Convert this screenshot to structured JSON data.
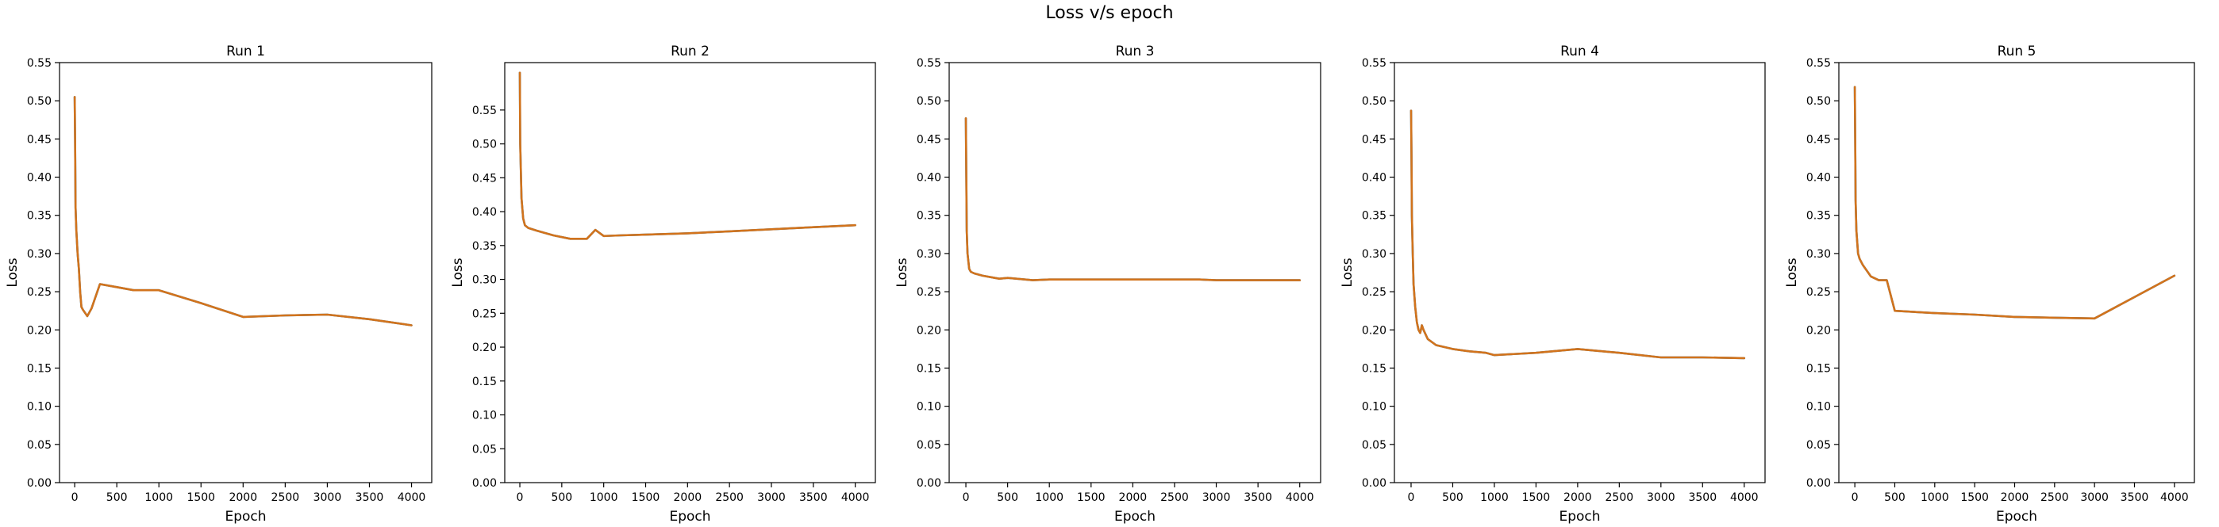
{
  "figure": {
    "title": "Loss v/s epoch"
  },
  "colors": {
    "series_top": "#ff7f0e",
    "series_bottom": "#1f77b4",
    "series_overlap": "#d2731c"
  },
  "chart_data": [
    {
      "type": "line",
      "title": "Run 1",
      "xlabel": "Epoch",
      "ylabel": "Loss",
      "xlim": [
        -180,
        4240
      ],
      "ylim": [
        0,
        0.55
      ],
      "xticks": [
        0,
        500,
        1000,
        1500,
        2000,
        2500,
        3000,
        3500,
        4000
      ],
      "yticks": [
        "0.00",
        "0.05",
        "0.10",
        "0.15",
        "0.20",
        "0.25",
        "0.30",
        "0.35",
        "0.40",
        "0.45",
        "0.50",
        "0.55"
      ],
      "series": [
        {
          "x": [
            0,
            5,
            10,
            20,
            35,
            50,
            65,
            80,
            100,
            150,
            200,
            300,
            500,
            700,
            1000,
            1500,
            2000,
            2500,
            3000,
            3500,
            4000
          ],
          "y": [
            0.505,
            0.45,
            0.36,
            0.33,
            0.3,
            0.28,
            0.25,
            0.23,
            0.226,
            0.218,
            0.228,
            0.26,
            0.256,
            0.252,
            0.252,
            0.235,
            0.217,
            0.219,
            0.22,
            0.214,
            0.206
          ]
        },
        {
          "x": [
            0,
            5,
            10,
            20,
            35,
            50,
            65,
            80,
            100,
            150,
            200,
            300,
            500,
            700,
            1000,
            1500,
            2000,
            2500,
            3000,
            3500,
            4000
          ],
          "y": [
            0.505,
            0.45,
            0.36,
            0.33,
            0.3,
            0.28,
            0.25,
            0.23,
            0.226,
            0.218,
            0.228,
            0.26,
            0.256,
            0.252,
            0.252,
            0.235,
            0.217,
            0.219,
            0.22,
            0.214,
            0.206
          ]
        }
      ]
    },
    {
      "type": "line",
      "title": "Run 2",
      "xlabel": "Epoch",
      "ylabel": "Loss",
      "xlim": [
        -180,
        4240
      ],
      "ylim": [
        0,
        0.62
      ],
      "xticks": [
        0,
        500,
        1000,
        1500,
        2000,
        2500,
        3000,
        3500,
        4000
      ],
      "yticks": [
        "0.00",
        "0.05",
        "0.10",
        "0.15",
        "0.20",
        "0.25",
        "0.30",
        "0.35",
        "0.40",
        "0.45",
        "0.50",
        "0.55"
      ],
      "series": [
        {
          "x": [
            0,
            5,
            10,
            20,
            40,
            60,
            100,
            200,
            400,
            600,
            800,
            900,
            1000,
            1200,
            1500,
            2000,
            2500,
            3000,
            3500,
            4000
          ],
          "y": [
            0.605,
            0.5,
            0.47,
            0.42,
            0.39,
            0.38,
            0.376,
            0.372,
            0.365,
            0.36,
            0.36,
            0.373,
            0.364,
            0.365,
            0.366,
            0.368,
            0.371,
            0.374,
            0.377,
            0.38
          ]
        },
        {
          "x": [
            0,
            5,
            10,
            20,
            40,
            60,
            100,
            200,
            400,
            600,
            800,
            900,
            1000,
            1200,
            1500,
            2000,
            2500,
            3000,
            3500,
            4000
          ],
          "y": [
            0.605,
            0.5,
            0.47,
            0.42,
            0.39,
            0.38,
            0.376,
            0.372,
            0.365,
            0.36,
            0.36,
            0.373,
            0.364,
            0.365,
            0.366,
            0.368,
            0.371,
            0.374,
            0.377,
            0.38
          ]
        }
      ]
    },
    {
      "type": "line",
      "title": "Run 3",
      "xlabel": "Epoch",
      "ylabel": "Loss",
      "xlim": [
        -200,
        4250
      ],
      "ylim": [
        0,
        0.55
      ],
      "xticks": [
        0,
        500,
        1000,
        1500,
        2000,
        2500,
        3000,
        3500,
        4000
      ],
      "yticks": [
        "0.00",
        "0.05",
        "0.10",
        "0.15",
        "0.20",
        "0.25",
        "0.30",
        "0.35",
        "0.40",
        "0.45",
        "0.50",
        "0.55"
      ],
      "series": [
        {
          "x": [
            0,
            5,
            10,
            20,
            40,
            60,
            100,
            200,
            400,
            500,
            800,
            1000,
            2000,
            2800,
            3000,
            4000
          ],
          "y": [
            0.477,
            0.4,
            0.33,
            0.3,
            0.28,
            0.276,
            0.274,
            0.271,
            0.267,
            0.268,
            0.265,
            0.266,
            0.266,
            0.266,
            0.265,
            0.265
          ]
        },
        {
          "x": [
            0,
            5,
            10,
            20,
            40,
            60,
            100,
            200,
            400,
            500,
            800,
            1000,
            2000,
            2800,
            3000,
            4000
          ],
          "y": [
            0.477,
            0.4,
            0.33,
            0.3,
            0.28,
            0.276,
            0.274,
            0.271,
            0.267,
            0.268,
            0.265,
            0.266,
            0.266,
            0.266,
            0.265,
            0.265
          ]
        }
      ]
    },
    {
      "type": "line",
      "title": "Run 4",
      "xlabel": "Epoch",
      "ylabel": "Loss",
      "xlim": [
        -200,
        4250
      ],
      "ylim": [
        0,
        0.55
      ],
      "xticks": [
        0,
        500,
        1000,
        1500,
        2000,
        2500,
        3000,
        3500,
        4000
      ],
      "yticks": [
        "0.00",
        "0.05",
        "0.10",
        "0.15",
        "0.20",
        "0.25",
        "0.30",
        "0.35",
        "0.40",
        "0.45",
        "0.50",
        "0.55"
      ],
      "series": [
        {
          "x": [
            0,
            5,
            10,
            20,
            30,
            50,
            70,
            90,
            110,
            130,
            150,
            200,
            300,
            500,
            700,
            900,
            1000,
            1500,
            2000,
            2500,
            3000,
            3500,
            4000
          ],
          "y": [
            0.487,
            0.43,
            0.35,
            0.3,
            0.26,
            0.23,
            0.21,
            0.2,
            0.196,
            0.206,
            0.2,
            0.188,
            0.18,
            0.175,
            0.172,
            0.17,
            0.167,
            0.17,
            0.175,
            0.17,
            0.164,
            0.164,
            0.163
          ]
        },
        {
          "x": [
            0,
            5,
            10,
            20,
            30,
            50,
            70,
            90,
            110,
            130,
            150,
            200,
            300,
            500,
            700,
            900,
            1000,
            1500,
            2000,
            2500,
            3000,
            3500,
            4000
          ],
          "y": [
            0.487,
            0.43,
            0.35,
            0.3,
            0.26,
            0.23,
            0.21,
            0.2,
            0.196,
            0.206,
            0.2,
            0.188,
            0.18,
            0.175,
            0.172,
            0.17,
            0.167,
            0.17,
            0.175,
            0.17,
            0.164,
            0.164,
            0.163
          ]
        }
      ]
    },
    {
      "type": "line",
      "title": "Run 5",
      "xlabel": "Epoch",
      "ylabel": "Loss",
      "xlim": [
        -200,
        4250
      ],
      "ylim": [
        0,
        0.55
      ],
      "xticks": [
        0,
        500,
        1000,
        1500,
        2000,
        2500,
        3000,
        3500,
        4000
      ],
      "yticks": [
        "0.00",
        "0.05",
        "0.10",
        "0.15",
        "0.20",
        "0.25",
        "0.30",
        "0.35",
        "0.40",
        "0.45",
        "0.50",
        "0.55"
      ],
      "series": [
        {
          "x": [
            0,
            5,
            10,
            20,
            40,
            60,
            100,
            200,
            300,
            400,
            500,
            1000,
            1500,
            2000,
            2500,
            3000,
            4000
          ],
          "y": [
            0.518,
            0.45,
            0.37,
            0.33,
            0.3,
            0.293,
            0.285,
            0.27,
            0.265,
            0.265,
            0.225,
            0.222,
            0.22,
            0.217,
            0.216,
            0.215,
            0.271
          ]
        },
        {
          "x": [
            0,
            5,
            10,
            20,
            40,
            60,
            100,
            200,
            300,
            400,
            500,
            1000,
            1500,
            2000,
            2500,
            3000,
            4000
          ],
          "y": [
            0.518,
            0.45,
            0.37,
            0.33,
            0.3,
            0.293,
            0.285,
            0.27,
            0.265,
            0.265,
            0.225,
            0.222,
            0.22,
            0.217,
            0.216,
            0.215,
            0.271
          ]
        }
      ]
    }
  ]
}
